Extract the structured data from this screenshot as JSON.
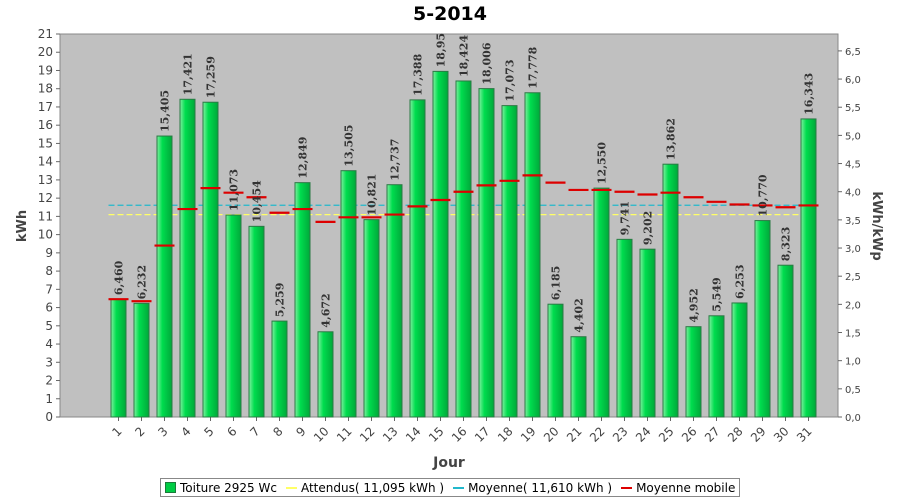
{
  "chart_data": {
    "type": "bar",
    "title": "5-2014",
    "xlabel": "Jour",
    "ylabel": "kWh",
    "y2label": "kWh/kWp",
    "ylim": [
      0,
      21
    ],
    "y2lim": [
      0,
      6.8
    ],
    "grid": false,
    "legend_position": "bottom",
    "categories": [
      "1",
      "2",
      "3",
      "4",
      "5",
      "6",
      "7",
      "8",
      "9",
      "10",
      "11",
      "12",
      "13",
      "14",
      "15",
      "16",
      "17",
      "18",
      "19",
      "20",
      "21",
      "22",
      "23",
      "24",
      "25",
      "26",
      "27",
      "28",
      "29",
      "30",
      "31"
    ],
    "y_ticks": [
      "0",
      "1",
      "2",
      "3",
      "4",
      "5",
      "6",
      "7",
      "8",
      "9",
      "10",
      "11",
      "12",
      "13",
      "14",
      "15",
      "16",
      "17",
      "18",
      "19",
      "20",
      "21"
    ],
    "y2_ticks": [
      "0,0",
      "0,5",
      "1,0",
      "1,5",
      "2,0",
      "2,5",
      "3,0",
      "3,5",
      "4,0",
      "4,5",
      "5,0",
      "5,5",
      "6,0",
      "6,5"
    ],
    "series": [
      {
        "name": "Toiture 2925 Wc",
        "kind": "bar",
        "color": "#00cc44",
        "values": [
          6.46,
          6.232,
          15.405,
          17.421,
          17.259,
          11.073,
          10.454,
          5.259,
          12.849,
          4.672,
          13.505,
          10.821,
          12.737,
          17.388,
          18.95,
          18.424,
          18.006,
          17.073,
          17.778,
          6.185,
          4.402,
          12.55,
          9.741,
          9.202,
          13.862,
          4.952,
          5.549,
          6.253,
          10.77,
          8.323,
          16.343
        ],
        "labels": [
          "6,460",
          "6,232",
          "15,405",
          "17,421",
          "17,259",
          "11,073",
          "10,454",
          "5,259",
          "12,849",
          "4,672",
          "13,505",
          "10,821",
          "12,737",
          "17,388",
          "18,95",
          "18,424",
          "18,006",
          "17,073",
          "17,778",
          "6,185",
          "4,402",
          "12,550",
          "9,741",
          "9,202",
          "13,862",
          "4,952",
          "5,549",
          "6,253",
          "10,770",
          "8,323",
          "16,343"
        ]
      },
      {
        "name": "Attendus( 11,095 kWh )",
        "kind": "hline",
        "color": "#ffff66",
        "value": 11.095
      },
      {
        "name": "Moyenne( 11,610 kWh )",
        "kind": "hline",
        "color": "#22b8cc",
        "value": 11.61
      },
      {
        "name": "Moyenne mobile",
        "kind": "marker",
        "color": "#dd0000",
        "values": [
          6.46,
          6.35,
          9.4,
          11.4,
          12.55,
          12.3,
          12.05,
          11.2,
          11.4,
          10.7,
          10.95,
          10.95,
          11.1,
          11.55,
          11.9,
          12.35,
          12.7,
          12.95,
          13.25,
          12.85,
          12.45,
          12.45,
          12.35,
          12.2,
          12.3,
          12.05,
          11.8,
          11.65,
          11.6,
          11.5,
          11.6
        ]
      }
    ]
  }
}
